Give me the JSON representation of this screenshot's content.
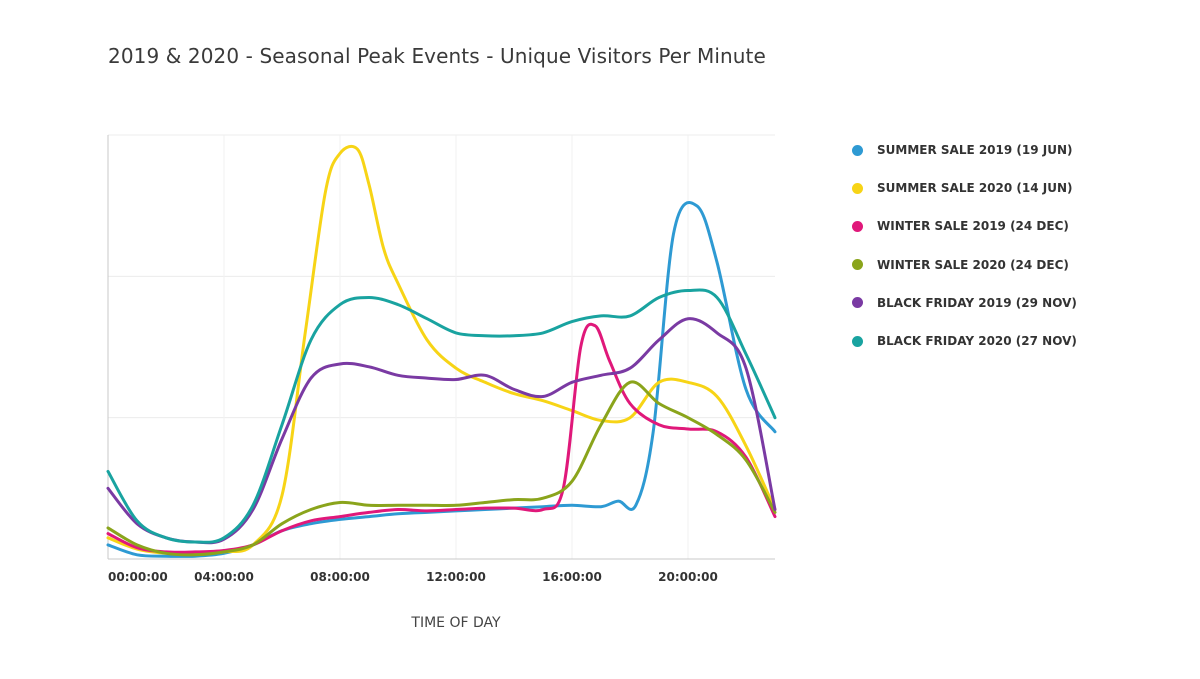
{
  "chart_data": {
    "type": "line",
    "title": "2019 & 2020 - Seasonal Peak Events - Unique Visitors Per Minute",
    "xlabel": "TIME OF DAY",
    "ylabel": "",
    "x_unit": "hour of day",
    "xlim": [
      0,
      23
    ],
    "ylim": [
      0,
      3
    ],
    "y_tick_labels_shown": false,
    "grid": true,
    "legend_position": "right",
    "x_ticks": [
      {
        "value": 0,
        "label": "00:00:00"
      },
      {
        "value": 4,
        "label": "04:00:00"
      },
      {
        "value": 8,
        "label": "08:00:00"
      },
      {
        "value": 12,
        "label": "12:00:00"
      },
      {
        "value": 16,
        "label": "16:00:00"
      },
      {
        "value": 20,
        "label": "20:00:00"
      }
    ],
    "series": [
      {
        "name": "SUMMER SALE 2019 (19 JUN)",
        "color": "#2e9ad3",
        "points": [
          [
            0,
            0.1
          ],
          [
            1,
            0.03
          ],
          [
            2,
            0.02
          ],
          [
            3,
            0.02
          ],
          [
            4,
            0.04
          ],
          [
            5,
            0.1
          ],
          [
            6,
            0.2
          ],
          [
            7,
            0.25
          ],
          [
            8,
            0.28
          ],
          [
            9,
            0.3
          ],
          [
            10,
            0.32
          ],
          [
            11,
            0.33
          ],
          [
            12,
            0.34
          ],
          [
            13,
            0.35
          ],
          [
            14,
            0.36
          ],
          [
            15,
            0.37
          ],
          [
            16,
            0.38
          ],
          [
            17,
            0.37
          ],
          [
            17.6,
            0.41
          ],
          [
            18.2,
            0.38
          ],
          [
            18.8,
            0.9
          ],
          [
            19.5,
            2.3
          ],
          [
            20.3,
            2.5
          ],
          [
            21,
            2.1
          ],
          [
            22,
            1.2
          ],
          [
            23,
            0.9
          ]
        ]
      },
      {
        "name": "SUMMER SALE 2020 (14 JUN)",
        "color": "#f7d416",
        "points": [
          [
            0,
            0.15
          ],
          [
            1,
            0.07
          ],
          [
            2,
            0.04
          ],
          [
            3,
            0.04
          ],
          [
            4,
            0.05
          ],
          [
            5,
            0.1
          ],
          [
            6,
            0.45
          ],
          [
            6.8,
            1.6
          ],
          [
            7.5,
            2.6
          ],
          [
            8,
            2.87
          ],
          [
            8.6,
            2.9
          ],
          [
            9,
            2.65
          ],
          [
            9.5,
            2.2
          ],
          [
            10,
            1.95
          ],
          [
            11,
            1.55
          ],
          [
            12,
            1.35
          ],
          [
            13,
            1.25
          ],
          [
            14,
            1.17
          ],
          [
            15,
            1.12
          ],
          [
            16,
            1.05
          ],
          [
            17,
            0.98
          ],
          [
            18,
            1.0
          ],
          [
            19,
            1.25
          ],
          [
            20,
            1.25
          ],
          [
            21,
            1.15
          ],
          [
            22,
            0.8
          ],
          [
            23,
            0.35
          ]
        ]
      },
      {
        "name": "WINTER SALE 2019 (24 DEC)",
        "color": "#e0187a",
        "points": [
          [
            0,
            0.18
          ],
          [
            1,
            0.08
          ],
          [
            2,
            0.05
          ],
          [
            3,
            0.05
          ],
          [
            4,
            0.06
          ],
          [
            5,
            0.1
          ],
          [
            6,
            0.2
          ],
          [
            7,
            0.27
          ],
          [
            8,
            0.3
          ],
          [
            9,
            0.33
          ],
          [
            10,
            0.35
          ],
          [
            11,
            0.34
          ],
          [
            12,
            0.35
          ],
          [
            13,
            0.36
          ],
          [
            14,
            0.36
          ],
          [
            15,
            0.35
          ],
          [
            15.7,
            0.5
          ],
          [
            16.3,
            1.5
          ],
          [
            16.8,
            1.65
          ],
          [
            17.3,
            1.4
          ],
          [
            18,
            1.1
          ],
          [
            19,
            0.95
          ],
          [
            20,
            0.92
          ],
          [
            21,
            0.9
          ],
          [
            22,
            0.72
          ],
          [
            23,
            0.3
          ]
        ]
      },
      {
        "name": "WINTER SALE 2020 (24 DEC)",
        "color": "#8aa41b",
        "points": [
          [
            0,
            0.22
          ],
          [
            1,
            0.1
          ],
          [
            2,
            0.04
          ],
          [
            3,
            0.03
          ],
          [
            4,
            0.05
          ],
          [
            5,
            0.1
          ],
          [
            6,
            0.25
          ],
          [
            7,
            0.35
          ],
          [
            8,
            0.4
          ],
          [
            9,
            0.38
          ],
          [
            10,
            0.38
          ],
          [
            11,
            0.38
          ],
          [
            12,
            0.38
          ],
          [
            13,
            0.4
          ],
          [
            14,
            0.42
          ],
          [
            15,
            0.43
          ],
          [
            16,
            0.55
          ],
          [
            17,
            0.95
          ],
          [
            18,
            1.25
          ],
          [
            19,
            1.1
          ],
          [
            20,
            1.0
          ],
          [
            21,
            0.88
          ],
          [
            22,
            0.7
          ],
          [
            23,
            0.33
          ]
        ]
      },
      {
        "name": "BLACK FRIDAY 2019 (29 NOV)",
        "color": "#7a3aa3",
        "points": [
          [
            0,
            0.5
          ],
          [
            1,
            0.25
          ],
          [
            2,
            0.15
          ],
          [
            3,
            0.12
          ],
          [
            4,
            0.14
          ],
          [
            5,
            0.35
          ],
          [
            6,
            0.85
          ],
          [
            7,
            1.28
          ],
          [
            8,
            1.38
          ],
          [
            9,
            1.36
          ],
          [
            10,
            1.3
          ],
          [
            11,
            1.28
          ],
          [
            12,
            1.27
          ],
          [
            13,
            1.3
          ],
          [
            14,
            1.2
          ],
          [
            15,
            1.15
          ],
          [
            16,
            1.25
          ],
          [
            17,
            1.3
          ],
          [
            18,
            1.35
          ],
          [
            19,
            1.55
          ],
          [
            20,
            1.7
          ],
          [
            21,
            1.6
          ],
          [
            22,
            1.35
          ],
          [
            23,
            0.35
          ]
        ]
      },
      {
        "name": "BLACK FRIDAY 2020 (27 NOV)",
        "color": "#19a3a0",
        "points": [
          [
            0,
            0.62
          ],
          [
            1,
            0.27
          ],
          [
            2,
            0.15
          ],
          [
            3,
            0.12
          ],
          [
            4,
            0.15
          ],
          [
            5,
            0.38
          ],
          [
            6,
            0.95
          ],
          [
            7,
            1.55
          ],
          [
            8,
            1.8
          ],
          [
            9,
            1.85
          ],
          [
            10,
            1.8
          ],
          [
            11,
            1.7
          ],
          [
            12,
            1.6
          ],
          [
            13,
            1.58
          ],
          [
            14,
            1.58
          ],
          [
            15,
            1.6
          ],
          [
            16,
            1.68
          ],
          [
            17,
            1.72
          ],
          [
            18,
            1.72
          ],
          [
            19,
            1.85
          ],
          [
            20,
            1.9
          ],
          [
            21,
            1.85
          ],
          [
            22,
            1.45
          ],
          [
            23,
            1.0
          ]
        ]
      }
    ]
  }
}
